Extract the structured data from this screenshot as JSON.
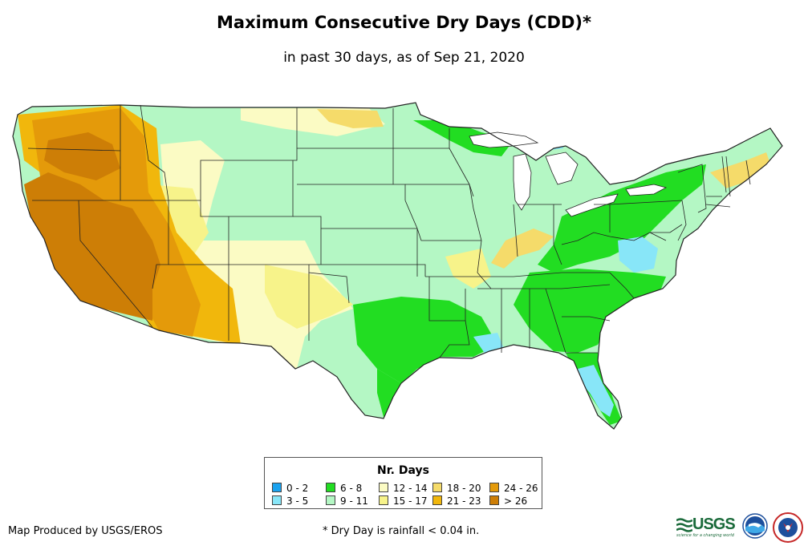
{
  "title": "Maximum Consecutive Dry Days (CDD)*",
  "subtitle": "in past 30 days, as of Sep 21, 2020",
  "legend": {
    "title": "Nr. Days",
    "items": [
      {
        "label": "0 - 2",
        "color": "#1aa3f0"
      },
      {
        "label": "3 - 5",
        "color": "#88e6f8"
      },
      {
        "label": "6 - 8",
        "color": "#22dd22"
      },
      {
        "label": "9 - 11",
        "color": "#b4f7c4"
      },
      {
        "label": "12 - 14",
        "color": "#fbfbc4"
      },
      {
        "label": "15 - 17",
        "color": "#f7f38a"
      },
      {
        "label": "18 - 20",
        "color": "#f5db6a"
      },
      {
        "label": "21 - 23",
        "color": "#f1b70c"
      },
      {
        "label": "24 - 26",
        "color": "#e49a0a"
      },
      {
        "label": "> 26",
        "color": "#cd7e06"
      }
    ]
  },
  "credit": "Map Produced by USGS/EROS",
  "footnote": "* Dry Day is rainfall < 0.04 in.",
  "logos": {
    "usgs_text": "USGS",
    "usgs_tagline": "science for a changing world",
    "noaa_text": "noaa"
  },
  "colors": {
    "border": "#222222",
    "water": "#ffffff",
    "usgs_green": "#1a6a3a",
    "noaa_blue": "#1d4f9c"
  }
}
